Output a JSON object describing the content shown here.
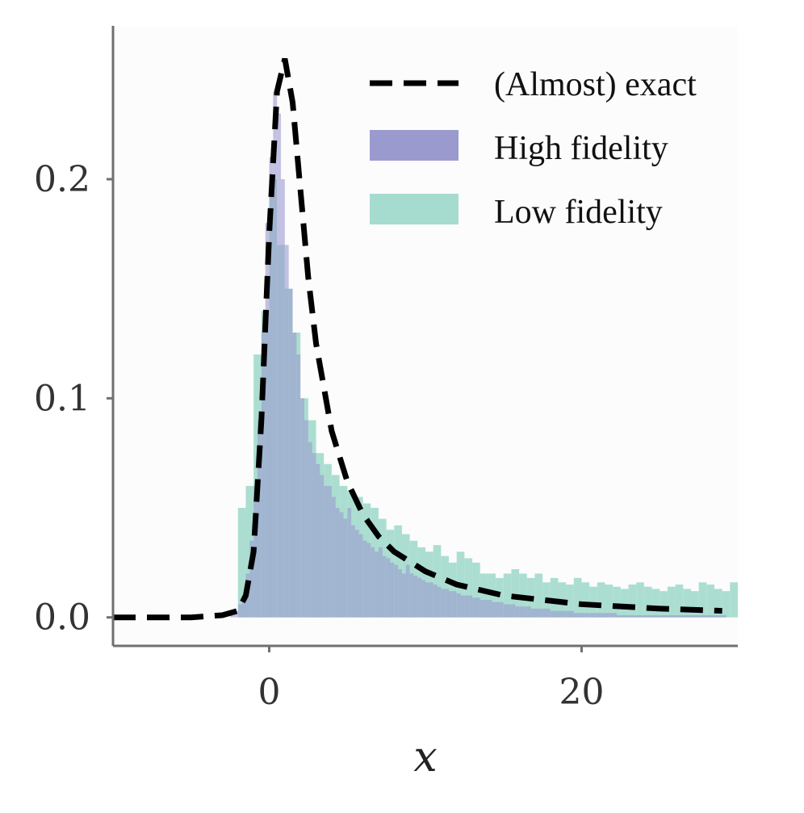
{
  "chart_data": {
    "type": "histogram",
    "title": "",
    "xlabel": "x",
    "ylabel": "",
    "xlim": [
      -10,
      30
    ],
    "ylim": [
      -0.013,
      0.27
    ],
    "x_ticks": [
      0,
      20
    ],
    "x_tick_labels": [
      "0",
      "20"
    ],
    "y_ticks": [
      0.0,
      0.1,
      0.2
    ],
    "y_tick_labels": [
      "0.0",
      "0.1",
      "0.2"
    ],
    "grid": false,
    "legend_position": "top-right",
    "legend": [
      "(Almost) exact",
      "High fidelity",
      "Low fidelity"
    ],
    "colors": {
      "exact": "#000000",
      "high_fidelity": "#9b9acf",
      "low_fidelity": "#a6dccf",
      "overlap": "#6f9fb2",
      "axis": "#707070",
      "plot_background": "#fcfcfc"
    },
    "series": [
      {
        "name": "(Almost) exact",
        "kind": "line",
        "style": "dashed",
        "x": [
          -10,
          -5,
          -3,
          -2,
          -1.5,
          -1,
          -0.5,
          0,
          0.5,
          1,
          1.5,
          2,
          2.5,
          3,
          4,
          5,
          6,
          7,
          8,
          10,
          12,
          15,
          20,
          25,
          29
        ],
        "y": [
          0.0,
          0.0,
          0.001,
          0.003,
          0.01,
          0.03,
          0.09,
          0.175,
          0.24,
          0.255,
          0.235,
          0.195,
          0.155,
          0.125,
          0.085,
          0.062,
          0.047,
          0.037,
          0.03,
          0.021,
          0.015,
          0.01,
          0.006,
          0.004,
          0.003
        ]
      },
      {
        "name": "High fidelity",
        "kind": "histogram",
        "bin_start": -2.5,
        "bin_width": 0.25,
        "values": [
          0.001,
          0.003,
          0.006,
          0.01,
          0.02,
          0.035,
          0.06,
          0.09,
          0.13,
          0.18,
          0.21,
          0.24,
          0.23,
          0.2,
          0.17,
          0.15,
          0.13,
          0.12,
          0.1,
          0.09,
          0.08,
          0.075,
          0.07,
          0.065,
          0.06,
          0.06,
          0.055,
          0.05,
          0.048,
          0.045,
          0.05,
          0.042,
          0.04,
          0.038,
          0.035,
          0.034,
          0.032,
          0.03,
          0.032,
          0.028,
          0.027,
          0.025,
          0.024,
          0.022,
          0.02,
          0.024,
          0.02,
          0.019,
          0.018,
          0.017,
          0.016,
          0.016,
          0.015,
          0.014,
          0.013,
          0.013,
          0.012,
          0.012,
          0.011,
          0.01,
          0.01,
          0.01,
          0.009,
          0.009,
          0.008,
          0.008,
          0.008,
          0.007,
          0.007,
          0.007,
          0.006,
          0.006,
          0.006,
          0.005,
          0.005,
          0.005,
          0.005,
          0.004,
          0.004,
          0.004,
          0.004,
          0.004,
          0.003,
          0.003,
          0.003,
          0.003,
          0.003,
          0.003,
          0.002,
          0.002,
          0.002,
          0.002,
          0.002,
          0.002,
          0.002,
          0.002,
          0.002,
          0.002,
          0.002,
          0.001,
          0.001,
          0.001,
          0.001,
          0.001,
          0.001,
          0.001,
          0.001,
          0.001,
          0.001,
          0.001,
          0.001,
          0.001,
          0.001,
          0.001,
          0.001,
          0.001,
          0.001,
          0.001,
          0.001,
          0.001,
          0.001,
          0.001,
          0.001,
          0.001,
          0.001,
          0.001,
          0.001
        ]
      },
      {
        "name": "Low fidelity",
        "kind": "histogram",
        "bin_start": -2.0,
        "bin_width": 0.5,
        "values": [
          0.05,
          0.06,
          0.12,
          0.14,
          0.2,
          0.17,
          0.15,
          0.13,
          0.1,
          0.09,
          0.075,
          0.07,
          0.065,
          0.06,
          0.058,
          0.055,
          0.052,
          0.05,
          0.045,
          0.04,
          0.042,
          0.038,
          0.035,
          0.032,
          0.03,
          0.033,
          0.028,
          0.025,
          0.03,
          0.027,
          0.025,
          0.02,
          0.02,
          0.018,
          0.02,
          0.022,
          0.02,
          0.018,
          0.02,
          0.016,
          0.018,
          0.016,
          0.015,
          0.018,
          0.016,
          0.014,
          0.016,
          0.015,
          0.014,
          0.013,
          0.015,
          0.016,
          0.014,
          0.013,
          0.012,
          0.014,
          0.015,
          0.013,
          0.012,
          0.016,
          0.015,
          0.013,
          0.012,
          0.016
        ]
      }
    ]
  }
}
